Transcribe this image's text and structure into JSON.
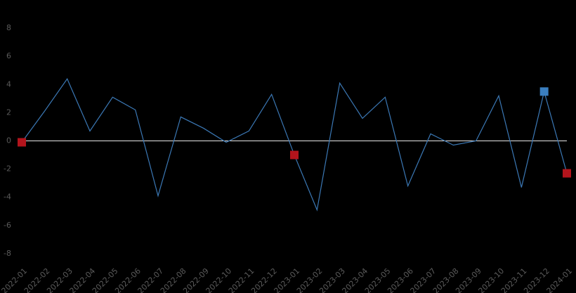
{
  "chart_data": {
    "type": "line",
    "categories": [
      "2022-01",
      "2022-02",
      "2022-03",
      "2022-04",
      "2022-05",
      "2022-06",
      "2022-07",
      "2022-08",
      "2022-09",
      "2022-10",
      "2022-11",
      "2022-12",
      "2023-01",
      "2023-02",
      "2023-03",
      "2023-04",
      "2023-05",
      "2023-06",
      "2023-07",
      "2023-08",
      "2023-09",
      "2023-10",
      "2023-11",
      "2023-12",
      "2024-01"
    ],
    "values": [
      -0.1,
      2.1,
      4.4,
      0.7,
      3.1,
      2.2,
      -3.9,
      1.7,
      0.9,
      -0.1,
      0.7,
      3.3,
      -1.0,
      -4.9,
      4.1,
      1.6,
      3.1,
      -3.2,
      0.5,
      -0.3,
      0.0,
      3.2,
      -3.3,
      3.5,
      -2.3
    ],
    "color": "#3b78b5",
    "markers": [
      {
        "category": "2022-01",
        "color": "#b3141c"
      },
      {
        "category": "2023-01",
        "color": "#b3141c"
      },
      {
        "category": "2023-12",
        "color": "#3a7ebf"
      },
      {
        "category": "2024-01",
        "color": "#b3141c"
      }
    ],
    "ylim": [
      -9,
      9
    ],
    "yticks": [
      -8,
      -6,
      -4,
      -2,
      0,
      2,
      4,
      6,
      8
    ],
    "zero_line": true,
    "grid": false
  }
}
